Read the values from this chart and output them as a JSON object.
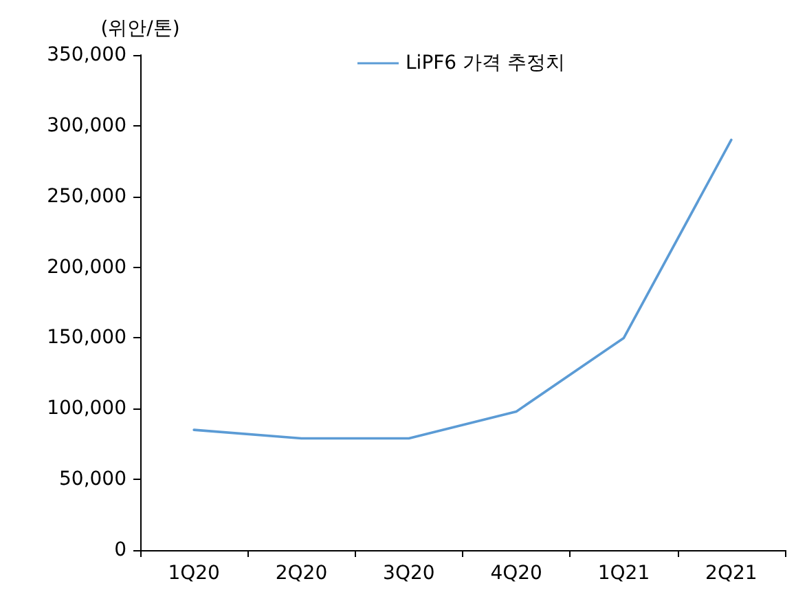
{
  "chart_data": {
    "type": "line",
    "ylabel": "(위안/톤)",
    "categories": [
      "1Q20",
      "2Q20",
      "3Q20",
      "4Q20",
      "1Q21",
      "2Q21"
    ],
    "series": [
      {
        "name": "LiPF6 가격 추정치",
        "color": "#5b9bd5",
        "values": [
          85000,
          79000,
          79000,
          98000,
          150000,
          290000
        ]
      }
    ],
    "ylim": [
      0,
      350000
    ],
    "yticks": [
      {
        "value": 0,
        "label": "0"
      },
      {
        "value": 50000,
        "label": "50,000"
      },
      {
        "value": 100000,
        "label": "100,000"
      },
      {
        "value": 150000,
        "label": "150,000"
      },
      {
        "value": 200000,
        "label": "200,000"
      },
      {
        "value": 250000,
        "label": "250,000"
      },
      {
        "value": 300000,
        "label": "300,000"
      },
      {
        "value": 350000,
        "label": "350,000"
      }
    ],
    "grid": false,
    "legend": "top",
    "marker": "none",
    "line_style": "solid"
  }
}
